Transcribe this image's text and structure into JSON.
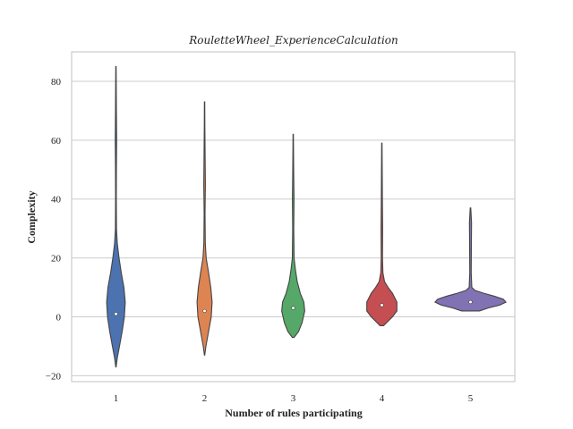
{
  "chart_data": {
    "type": "violin",
    "title": "RouletteWheel_ExperienceCalculation",
    "xlabel": "Number of rules participating",
    "ylabel": "Complexity",
    "ylim": [
      -22,
      90
    ],
    "yticks": [
      -20,
      0,
      20,
      40,
      60,
      80
    ],
    "grid": true,
    "categories": [
      "1",
      "2",
      "3",
      "4",
      "5"
    ],
    "series": [
      {
        "category": "1",
        "color": "#4c72b0",
        "median": 1,
        "profile": [
          [
            -17,
            0.2
          ],
          [
            -14,
            1.5
          ],
          [
            -10,
            4
          ],
          [
            -5,
            7
          ],
          [
            0,
            9.5
          ],
          [
            5,
            10.5
          ],
          [
            10,
            9
          ],
          [
            15,
            6
          ],
          [
            20,
            3.5
          ],
          [
            25,
            1.5
          ],
          [
            30,
            0.6
          ],
          [
            40,
            0.4
          ],
          [
            50,
            0.5
          ],
          [
            60,
            0.8
          ],
          [
            70,
            0.5
          ],
          [
            80,
            0.3
          ],
          [
            85,
            0.2
          ]
        ]
      },
      {
        "category": "2",
        "color": "#dd8452",
        "median": 2,
        "profile": [
          [
            -13,
            0.2
          ],
          [
            -10,
            1.5
          ],
          [
            -5,
            4.5
          ],
          [
            0,
            7.5
          ],
          [
            5,
            8.5
          ],
          [
            10,
            7
          ],
          [
            15,
            4.5
          ],
          [
            20,
            1.8
          ],
          [
            25,
            0.8
          ],
          [
            35,
            0.5
          ],
          [
            45,
            0.9
          ],
          [
            55,
            0.6
          ],
          [
            65,
            0.3
          ],
          [
            73,
            0.2
          ]
        ]
      },
      {
        "category": "3",
        "color": "#55a868",
        "median": 3,
        "profile": [
          [
            -7,
            1
          ],
          [
            -5,
            6
          ],
          [
            -2,
            10
          ],
          [
            2,
            13
          ],
          [
            5,
            12
          ],
          [
            8,
            8
          ],
          [
            12,
            4.5
          ],
          [
            16,
            2.5
          ],
          [
            20,
            1
          ],
          [
            30,
            0.6
          ],
          [
            40,
            0.9
          ],
          [
            50,
            0.5
          ],
          [
            62,
            0.2
          ]
        ]
      },
      {
        "category": "4",
        "color": "#c44e52",
        "median": 4,
        "profile": [
          [
            -3,
            2
          ],
          [
            0,
            12
          ],
          [
            2,
            17
          ],
          [
            5,
            17
          ],
          [
            8,
            12
          ],
          [
            10,
            7
          ],
          [
            12,
            3
          ],
          [
            15,
            1.2
          ],
          [
            20,
            0.7
          ],
          [
            30,
            0.9
          ],
          [
            40,
            0.6
          ],
          [
            50,
            0.4
          ],
          [
            59,
            0.2
          ]
        ]
      },
      {
        "category": "5",
        "color": "#8172b3",
        "median": 5,
        "profile": [
          [
            2,
            10
          ],
          [
            3,
            20
          ],
          [
            4,
            33
          ],
          [
            5,
            40
          ],
          [
            6,
            37
          ],
          [
            7,
            27
          ],
          [
            8,
            15
          ],
          [
            9,
            5
          ],
          [
            10,
            1.5
          ],
          [
            15,
            0.8
          ],
          [
            25,
            1
          ],
          [
            32,
            1.2
          ],
          [
            37,
            0.3
          ]
        ]
      }
    ]
  }
}
